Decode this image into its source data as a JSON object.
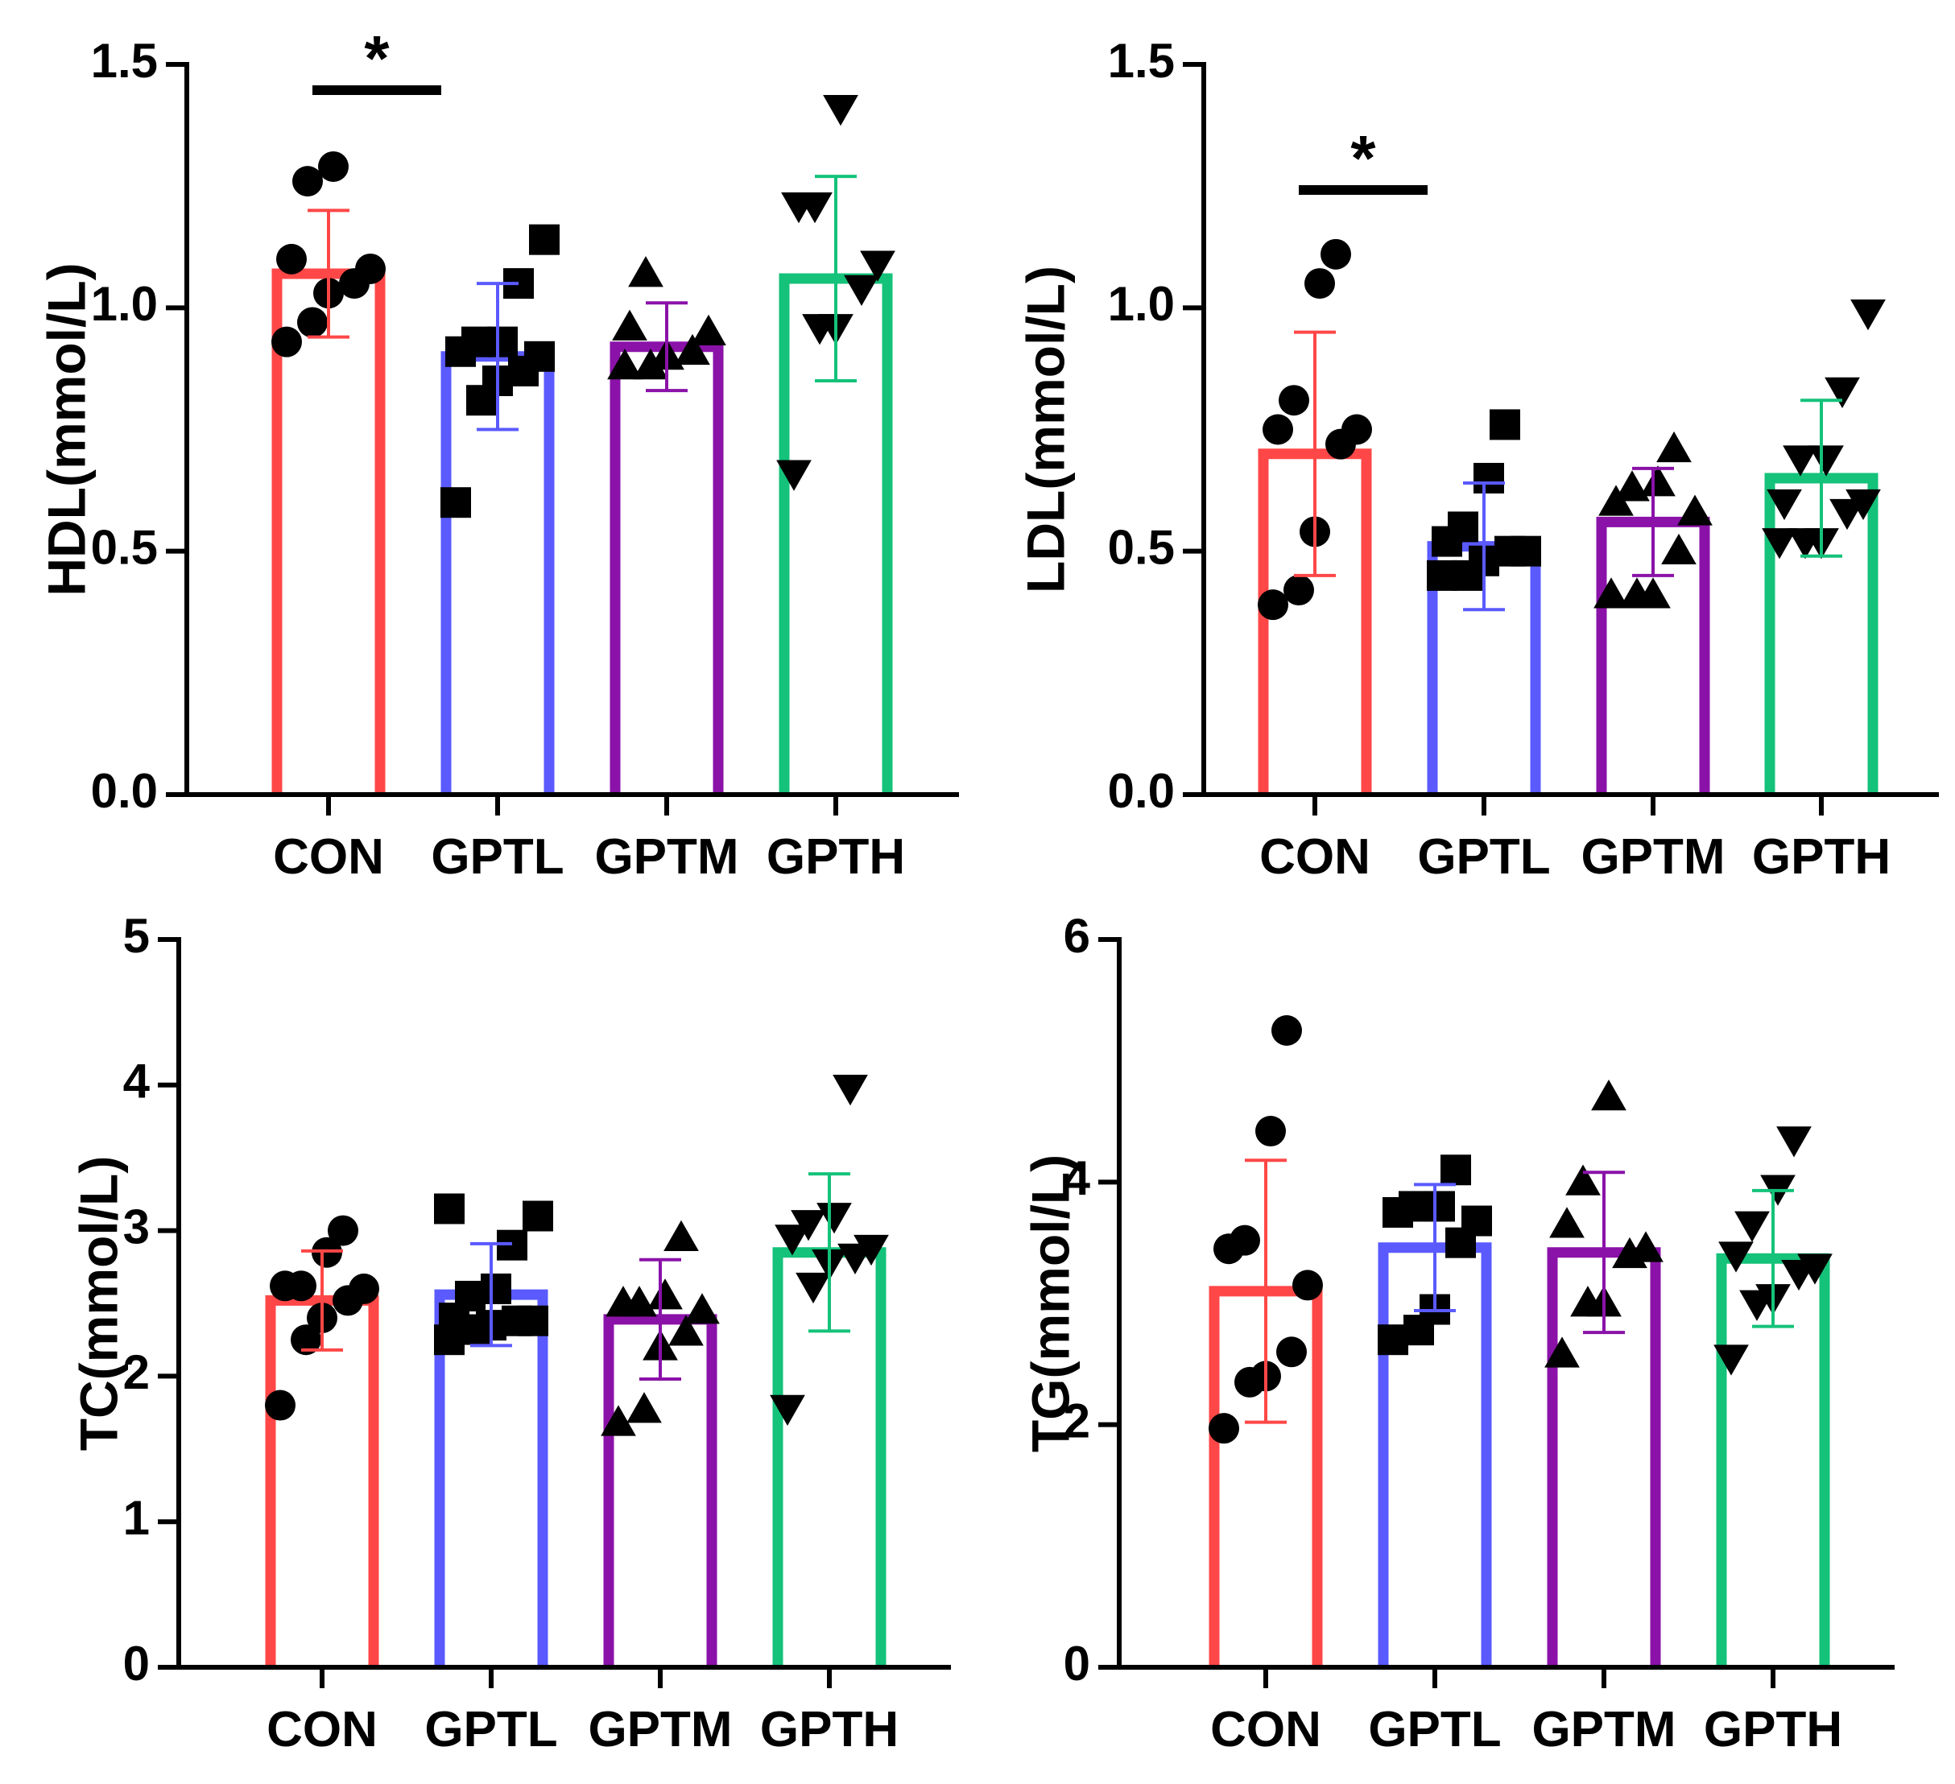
{
  "chart_data": [
    {
      "type": "bar",
      "panel": "top-left",
      "title": "",
      "ylabel": "HDL(mmol/L)",
      "xlabel": "",
      "ylim": [
        0,
        1.5
      ],
      "yticks": [
        0.0,
        0.5,
        1.0,
        1.5
      ],
      "ytick_labels": [
        "0.0",
        "0.5",
        "1.0",
        "1.5"
      ],
      "categories": [
        "CON",
        "GPTL",
        "GPTM",
        "GPTH"
      ],
      "colors": [
        "#ff4747",
        "#5a5aff",
        "#8a12a8",
        "#14c27a"
      ],
      "markers": [
        "circle",
        "square",
        "triangle-up",
        "triangle-down"
      ],
      "values": [
        1.07,
        0.9,
        0.92,
        1.06
      ],
      "sd": [
        0.13,
        0.15,
        0.09,
        0.21
      ],
      "points": [
        [
          0.93,
          0.97,
          1.03,
          1.05,
          1.08,
          1.1,
          1.26,
          1.29
        ],
        [
          0.6,
          0.81,
          0.85,
          0.87,
          0.9,
          0.91,
          0.93,
          0.93,
          1.05,
          1.14
        ],
        [
          0.88,
          0.88,
          0.9,
          0.91,
          0.95,
          0.96,
          1.07
        ],
        [
          0.66,
          0.96,
          0.96,
          1.04,
          1.09,
          1.21,
          1.21,
          1.41
        ]
      ],
      "significance": [
        {
          "from": "CON",
          "to": "GPTL",
          "label": "*"
        }
      ]
    },
    {
      "type": "bar",
      "panel": "top-right",
      "title": "",
      "ylabel": "LDL(mmol/L)",
      "xlabel": "",
      "ylim": [
        0,
        1.5
      ],
      "yticks": [
        0.0,
        0.5,
        1.0,
        1.5
      ],
      "ytick_labels": [
        "0.0",
        "0.5",
        "1.0",
        "1.5"
      ],
      "categories": [
        "CON",
        "GPTL",
        "GPTM",
        "GPTH"
      ],
      "colors": [
        "#ff4747",
        "#5a5aff",
        "#8a12a8",
        "#14c27a"
      ],
      "markers": [
        "circle",
        "square",
        "triangle-up",
        "triangle-down"
      ],
      "values": [
        0.7,
        0.51,
        0.56,
        0.65
      ],
      "sd": [
        0.25,
        0.13,
        0.11,
        0.16
      ],
      "points": [
        [
          0.39,
          0.42,
          0.54,
          0.72,
          0.75,
          0.75,
          0.81,
          1.05,
          1.11
        ],
        [
          0.45,
          0.45,
          0.48,
          0.5,
          0.5,
          0.52,
          0.55,
          0.65,
          0.76
        ],
        [
          0.41,
          0.41,
          0.41,
          0.5,
          0.58,
          0.6,
          0.63,
          0.64,
          0.71
        ],
        [
          0.52,
          0.52,
          0.52,
          0.58,
          0.6,
          0.6,
          0.69,
          0.69,
          0.83,
          0.99
        ]
      ],
      "significance": [
        {
          "from": "CON",
          "to": "GPTL",
          "label": "*"
        }
      ]
    },
    {
      "type": "bar",
      "panel": "bottom-left",
      "title": "",
      "ylabel": "TC(mmol/L)",
      "xlabel": "",
      "ylim": [
        0,
        5
      ],
      "yticks": [
        0,
        1,
        2,
        3,
        4,
        5
      ],
      "ytick_labels": [
        "0",
        "1",
        "2",
        "3",
        "4",
        "5"
      ],
      "categories": [
        "CON",
        "GPTL",
        "GPTM",
        "GPTH"
      ],
      "colors": [
        "#ff4747",
        "#5a5aff",
        "#8a12a8",
        "#14c27a"
      ],
      "markers": [
        "circle",
        "square",
        "triangle-up",
        "triangle-down"
      ],
      "values": [
        2.52,
        2.56,
        2.39,
        2.85
      ],
      "sd": [
        0.34,
        0.35,
        0.41,
        0.54
      ],
      "points": [
        [
          1.8,
          2.25,
          2.4,
          2.52,
          2.6,
          2.62,
          2.62,
          2.85,
          3.0
        ],
        [
          2.25,
          2.32,
          2.35,
          2.38,
          2.38,
          2.4,
          2.55,
          2.6,
          2.9,
          3.1,
          3.15
        ],
        [
          1.68,
          1.77,
          2.2,
          2.3,
          2.45,
          2.5,
          2.5,
          2.55,
          2.95
        ],
        [
          1.78,
          2.62,
          2.78,
          2.82,
          2.88,
          2.95,
          3.05,
          3.1,
          3.98
        ]
      ],
      "significance": []
    },
    {
      "type": "bar",
      "panel": "bottom-right",
      "title": "",
      "ylabel": "TG(mmol/L)",
      "xlabel": "",
      "ylim": [
        0,
        6
      ],
      "yticks": [
        0,
        2,
        4,
        6
      ],
      "ytick_labels": [
        "0",
        "2",
        "4",
        "6"
      ],
      "categories": [
        "CON",
        "GPTL",
        "GPTM",
        "GPTH"
      ],
      "colors": [
        "#ff4747",
        "#5a5aff",
        "#8a12a8",
        "#14c27a"
      ],
      "markers": [
        "circle",
        "square",
        "triangle-up",
        "triangle-down"
      ],
      "values": [
        3.1,
        3.46,
        3.42,
        3.37
      ],
      "sd": [
        1.08,
        0.52,
        0.66,
        0.56
      ],
      "points": [
        [
          1.97,
          2.35,
          2.4,
          2.6,
          3.15,
          3.45,
          3.52,
          4.42,
          5.25
        ],
        [
          2.7,
          2.78,
          2.95,
          3.5,
          3.68,
          3.75,
          3.8,
          3.8,
          4.1
        ],
        [
          2.58,
          3.0,
          3.0,
          3.4,
          3.45,
          3.65,
          4.0,
          4.7
        ],
        [
          2.55,
          3.0,
          3.05,
          3.25,
          3.3,
          3.4,
          3.65,
          3.95,
          4.35
        ]
      ],
      "significance": []
    }
  ]
}
